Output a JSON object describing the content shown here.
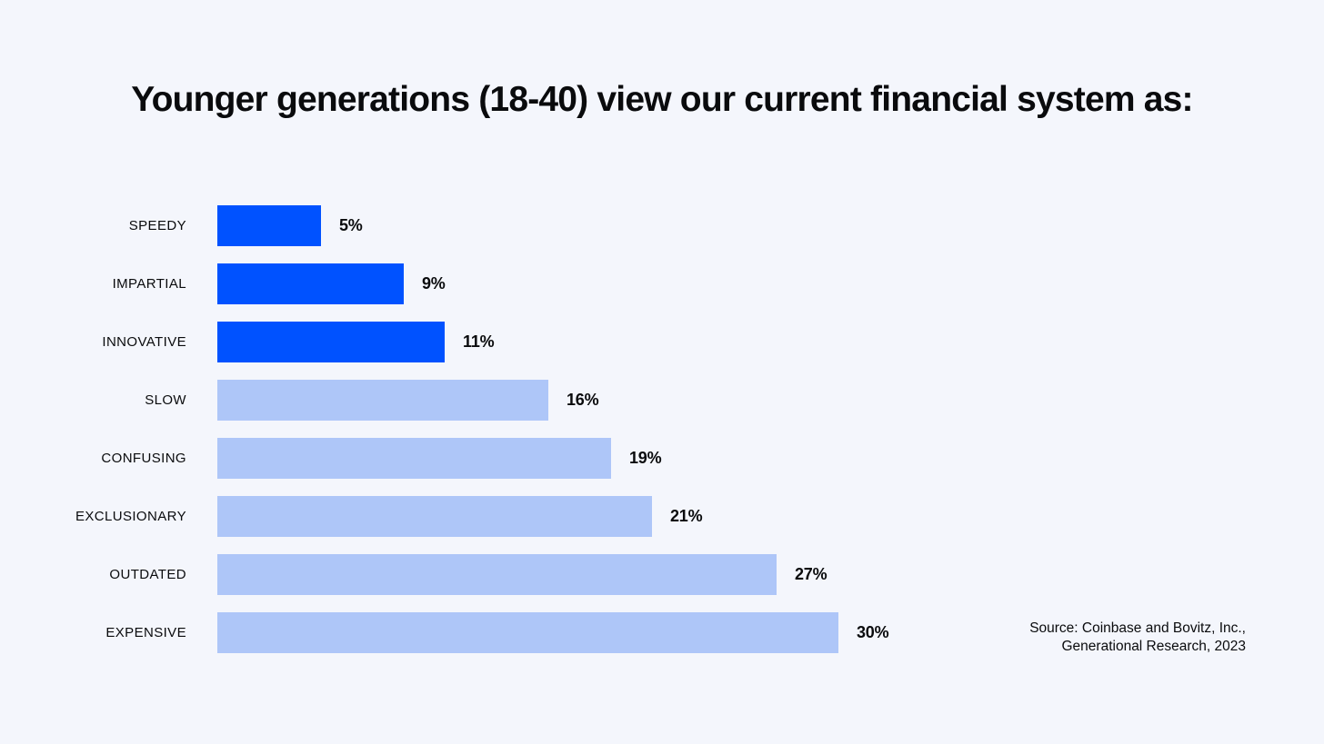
{
  "page": {
    "background": "#F4F6FC",
    "text_color": "#0A0B0D"
  },
  "chart_data": {
    "type": "bar",
    "orientation": "horizontal",
    "title": "Younger generations (18-40) view our current financial system as:",
    "categories": [
      "SPEEDY",
      "IMPARTIAL",
      "INNOVATIVE",
      "SLOW",
      "CONFUSING",
      "EXCLUSIONARY",
      "OUTDATED",
      "EXPENSIVE"
    ],
    "values": [
      5,
      9,
      11,
      16,
      19,
      21,
      27,
      30
    ],
    "value_labels": [
      "5%",
      "9%",
      "11%",
      "16%",
      "19%",
      "21%",
      "27%",
      "30%"
    ],
    "bar_colors": [
      "#0052FF",
      "#0052FF",
      "#0052FF",
      "#AEC6F8",
      "#AEC6F8",
      "#AEC6F8",
      "#AEC6F8",
      "#AEC6F8"
    ],
    "highlight_color": "#0052FF",
    "muted_color": "#AEC6F8",
    "xlabel": "",
    "ylabel": "",
    "xlim": [
      0,
      30
    ],
    "grid": false,
    "legend": "none",
    "value_label_position": "right-of-bar"
  },
  "source": {
    "line1": "Source: Coinbase and Bovitz, Inc.,",
    "line2": "Generational Research, 2023"
  }
}
